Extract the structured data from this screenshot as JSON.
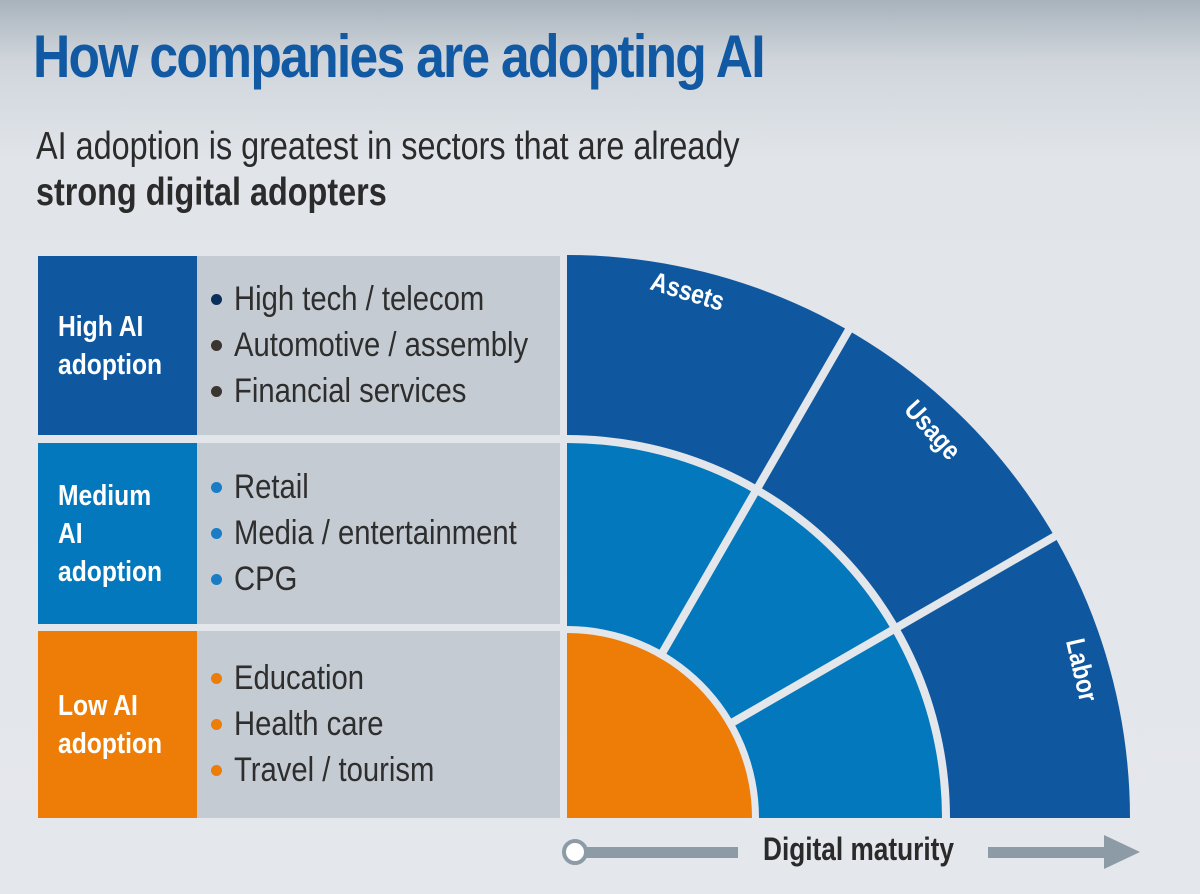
{
  "title": "How companies are adopting AI",
  "subtitle": {
    "line1": "AI adoption is greatest in sectors that are already",
    "line2": "strong digital adopters"
  },
  "colors": {
    "high": "#0f58a0",
    "medium": "#0478bd",
    "low": "#ed7d07",
    "panel": "#c4cbd2",
    "axis": "#8c9ba5"
  },
  "rows": [
    {
      "label": "High AI\nadoption",
      "level": "high",
      "bullet_color": "#0b2f5c",
      "items": [
        "High tech / telecom",
        "Automotive / assembly",
        "Financial services"
      ]
    },
    {
      "label": "Medium\nAI\nadoption",
      "level": "medium",
      "bullet_color": "#1a7cc4",
      "items": [
        "Retail",
        "Media / entertainment",
        "CPG"
      ]
    },
    {
      "label": "Low AI\nadoption",
      "level": "low",
      "bullet_color": "#ed7d07",
      "items": [
        "Education",
        "Health care",
        "Travel / tourism"
      ]
    }
  ],
  "diagram": {
    "segments": [
      "Assets",
      "Usage",
      "Labor"
    ]
  },
  "axis": {
    "label": "Digital maturity"
  }
}
